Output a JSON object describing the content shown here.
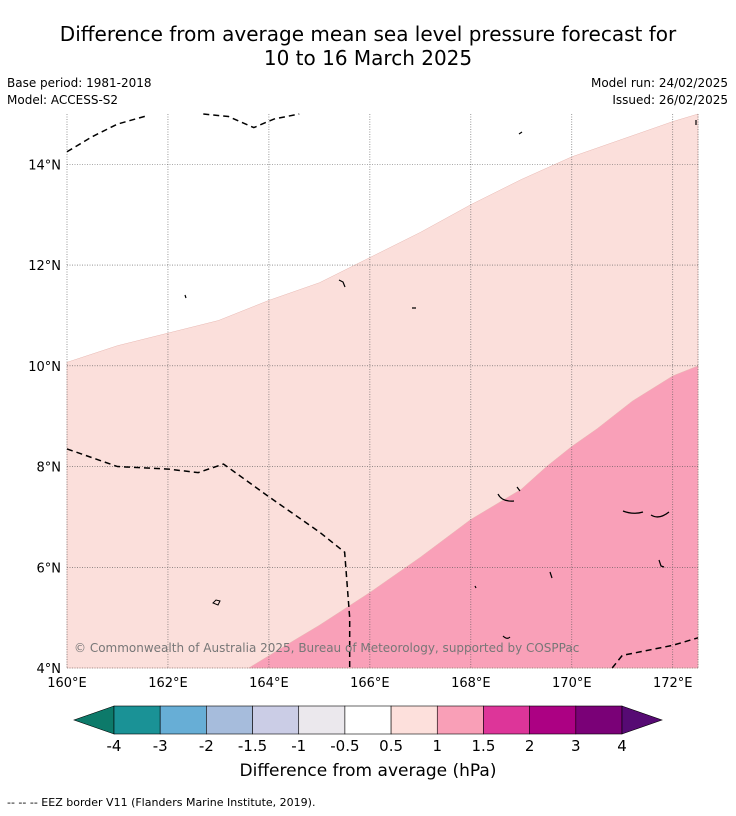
{
  "title_line1": "Difference from average mean sea level pressure forecast for",
  "title_line2": "10 to 16 March 2025",
  "base_period": "Base period: 1981-2018",
  "model": "Model: ACCESS-S2",
  "model_run": "Model run: 24/02/2025",
  "issued": "Issued: 26/02/2025",
  "copyright": "© Commonwealth of Australia 2025, Bureau of Meteorology, supported by COSPPac",
  "footer": "--  --  -- EEZ border V11 (Flanders Marine Institute, 2019).",
  "map": {
    "lon_min": 160,
    "lon_max": 172.5,
    "lat_min": 4,
    "lat_max": 15,
    "lon_ticks": [
      "160°E",
      "162°E",
      "164°E",
      "166°E",
      "168°E",
      "170°E",
      "172°E"
    ],
    "lat_ticks": [
      "4°N",
      "6°N",
      "8°N",
      "10°N",
      "12°N",
      "14°N"
    ],
    "lon_tick_values": [
      160,
      162,
      164,
      166,
      168,
      170,
      172
    ],
    "lat_tick_values": [
      4,
      6,
      8,
      10,
      12,
      14
    ],
    "contours": [
      {
        "level": "0.5 to 1",
        "color": "#fbdfdb",
        "boundary": [
          [
            160,
            10.07
          ],
          [
            161,
            10.4
          ],
          [
            162,
            10.65
          ],
          [
            163,
            10.9
          ],
          [
            164,
            11.3
          ],
          [
            165,
            11.65
          ],
          [
            165.4,
            11.85
          ],
          [
            166,
            12.15
          ],
          [
            167,
            12.65
          ],
          [
            168,
            13.2
          ],
          [
            169,
            13.7
          ],
          [
            170,
            14.15
          ],
          [
            171,
            14.5
          ],
          [
            172,
            14.85
          ],
          [
            172.5,
            15.0
          ]
        ]
      },
      {
        "level": "1 to 1.5",
        "color": "#f9a0b8",
        "boundary": [
          [
            163.6,
            4.0
          ],
          [
            164.5,
            4.55
          ],
          [
            165,
            4.85
          ],
          [
            166,
            5.5
          ],
          [
            167,
            6.2
          ],
          [
            168,
            6.95
          ],
          [
            169,
            7.55
          ],
          [
            169.5,
            8.0
          ],
          [
            170,
            8.4
          ],
          [
            170.5,
            8.75
          ],
          [
            171.2,
            9.3
          ],
          [
            172,
            9.8
          ],
          [
            172.5,
            10.0
          ]
        ]
      }
    ],
    "eez_borders": [
      [
        [
          160,
          14.25
        ],
        [
          160.5,
          14.55
        ],
        [
          161,
          14.8
        ],
        [
          161.6,
          14.97
        ]
      ],
      [
        [
          162.7,
          15.0
        ],
        [
          163.2,
          14.95
        ],
        [
          163.7,
          14.73
        ],
        [
          164.1,
          14.9
        ],
        [
          164.6,
          15.0
        ]
      ],
      [
        [
          160,
          8.35
        ],
        [
          161,
          8.0
        ],
        [
          162,
          7.95
        ],
        [
          162.6,
          7.88
        ],
        [
          163.1,
          8.05
        ],
        [
          164,
          7.4
        ],
        [
          165,
          6.7
        ],
        [
          165.5,
          6.3
        ],
        [
          165.6,
          5.0
        ],
        [
          165.6,
          4.0
        ]
      ],
      [
        [
          170.8,
          4.0
        ],
        [
          171,
          4.25
        ],
        [
          172,
          4.45
        ],
        [
          172.5,
          4.6
        ]
      ]
    ]
  },
  "colorbar": {
    "title": "Difference from average (hPa)",
    "low_color": "#0d7a6a",
    "high_color": "#560a73",
    "colors": [
      "#1a9296",
      "#67aed6",
      "#a6bcdc",
      "#cbcde6",
      "#ebe8ed",
      "#ffffff",
      "#fde0dc",
      "#f99fb7",
      "#dd3599",
      "#ac0183",
      "#7a0177"
    ],
    "labels": [
      "-4",
      "-3",
      "-2",
      "-1.5",
      "-1",
      "-0.5",
      "0.5",
      "1",
      "1.5",
      "2",
      "3",
      "4"
    ]
  }
}
